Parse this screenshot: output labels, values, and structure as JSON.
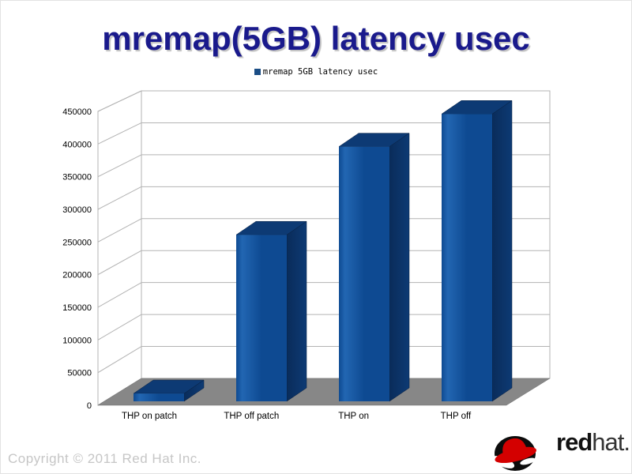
{
  "slide": {
    "title": "mremap(5GB) latency usec",
    "title_color": "#1a1a8c"
  },
  "chart_data": {
    "type": "bar",
    "style": "3d-bar",
    "title": "mremap(5GB) latency usec",
    "categories": [
      "THP on patch",
      "THP off patch",
      "THP on",
      "THP off"
    ],
    "series": [
      {
        "name": "mremap 5GB latency usec",
        "values": [
          12000,
          255000,
          390000,
          440000
        ]
      }
    ],
    "xlabel": "",
    "ylabel": "",
    "ylim": [
      0,
      450000
    ],
    "ytick_step": 50000,
    "yticks": [
      0,
      50000,
      100000,
      150000,
      200000,
      250000,
      300000,
      350000,
      400000,
      450000
    ],
    "grid": true,
    "legend_position": "top-center",
    "colors": {
      "bar_front": "#0e4a92",
      "bar_front_light": "#2266b2",
      "bar_side": "#0a2c5a",
      "bar_top": "#0d3a74",
      "bar_edge": "#071f40",
      "floor": "#878787",
      "floor_edge": "#6f6f6f",
      "grid_line": "#b3b3b3",
      "legend_swatch": "#1a4d85",
      "tick_label": "#000000",
      "category_label": "#000000"
    }
  },
  "footer": {
    "copyright": "Copyright © 2011 Red Hat Inc."
  },
  "logo": {
    "word_bold": "red",
    "word_regular": "hat",
    "period": ".",
    "hat_red": "#d40000",
    "band_red": "#9c0000",
    "shadow_black": "#0c0c0c"
  }
}
